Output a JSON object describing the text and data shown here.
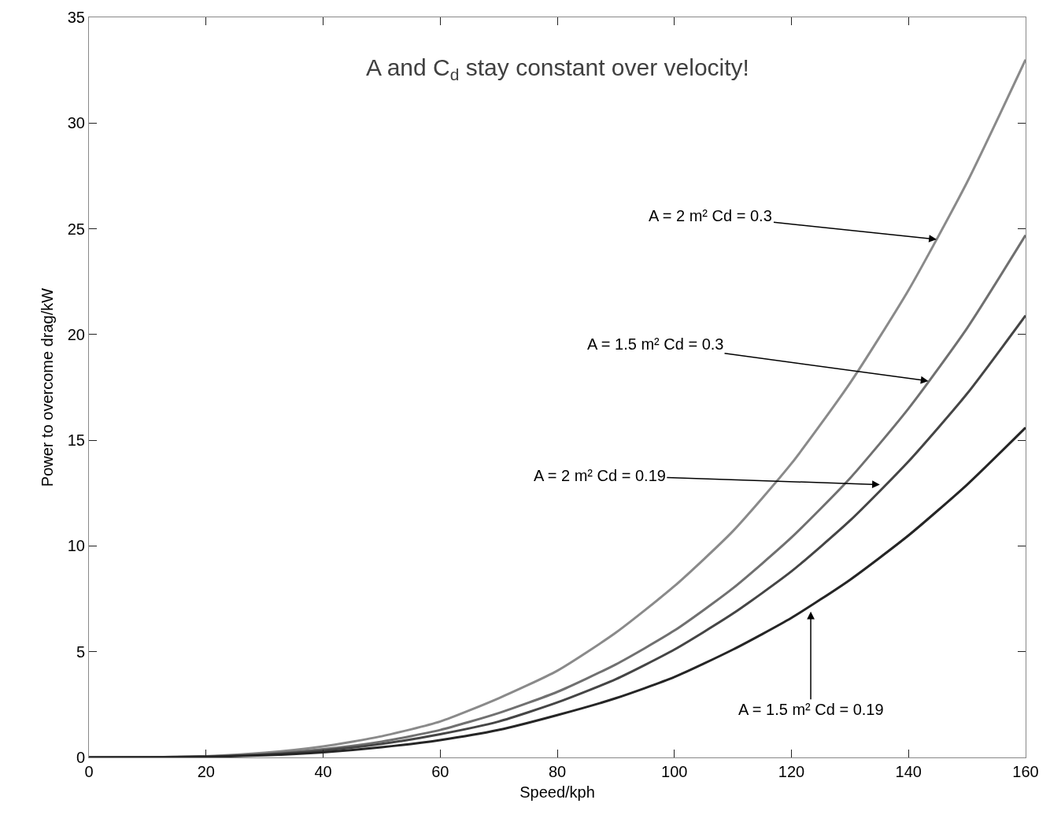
{
  "chart_data": {
    "type": "line",
    "xlabel": "Speed/kph",
    "ylabel": "Power to overcome drag/kW",
    "x": [
      0,
      10,
      20,
      30,
      40,
      50,
      60,
      70,
      80,
      90,
      100,
      110,
      120,
      130,
      140,
      150,
      160
    ],
    "series": [
      {
        "color": "#8a8a8a",
        "values": [
          0,
          0.01,
          0.06,
          0.22,
          0.52,
          1.0,
          1.7,
          2.8,
          4.1,
          5.9,
          8.1,
          10.7,
          13.9,
          17.7,
          22.1,
          27.2,
          33
        ]
      },
      {
        "color": "#707070",
        "values": [
          0,
          0.01,
          0.05,
          0.16,
          0.39,
          0.75,
          1.3,
          2.1,
          3.1,
          4.4,
          6.0,
          8.0,
          10.4,
          13.2,
          16.5,
          20.3,
          24.7
        ]
      },
      {
        "color": "#454545",
        "values": [
          0,
          0.01,
          0.04,
          0.14,
          0.33,
          0.64,
          1.1,
          1.7,
          2.6,
          3.7,
          5.1,
          6.8,
          8.8,
          11.2,
          14.0,
          17.2,
          20.9
        ]
      },
      {
        "color": "#252525",
        "values": [
          0,
          0,
          0.03,
          0.1,
          0.24,
          0.48,
          0.82,
          1.3,
          2.0,
          2.8,
          3.8,
          5.1,
          6.6,
          8.4,
          10.5,
          12.9,
          15.6
        ]
      }
    ],
    "annotations": [
      "A and C$_{d}$ stay constant over velocity!",
      {
        "text": "A = 2 m² Cd = 0.3",
        "x": 144.8,
        "y": 24.5
      },
      {
        "text": "A = 1.5 m² Cd = 0.3",
        "x": 143.4,
        "y": 17.8
      },
      {
        "text": "A = 2 m² Cd = 0.19",
        "x": 135.1,
        "y": 12.9
      },
      {
        "text": "A = 1.5 m² Cd = 0.19",
        "x": 123.3,
        "y": 6.9
      }
    ],
    "xlim": [
      0,
      160
    ],
    "xticks": [
      0,
      20,
      40,
      60,
      80,
      100,
      120,
      140,
      160
    ],
    "ylim": [
      0,
      35
    ],
    "yticks": [
      0,
      5,
      10,
      15,
      20,
      25,
      30,
      35
    ],
    "grid": false,
    "marker": "none",
    "line_style": "solid"
  }
}
